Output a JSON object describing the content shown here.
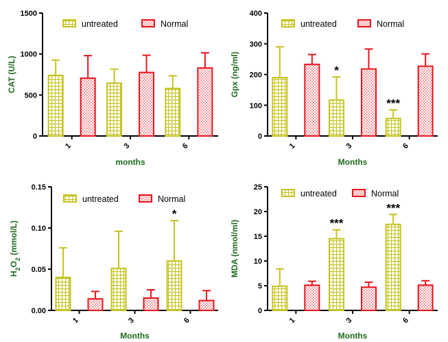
{
  "colors": {
    "untreated": "#c6c320",
    "normal": "#e8141c",
    "axis_title": "#1e6b1e"
  },
  "chart_data": [
    {
      "type": "bar",
      "categories": [
        "1",
        "3",
        "6"
      ],
      "xlabel": "months",
      "ylabel": "CAT (U/L)",
      "ylim": [
        0,
        1500
      ],
      "yticks": [
        "0",
        "500",
        "1000",
        "1500"
      ],
      "legend_position": "top",
      "series": [
        {
          "name": "untreated",
          "values": [
            740,
            645,
            580
          ],
          "errors": [
            185,
            170,
            155
          ]
        },
        {
          "name": "Normal",
          "values": [
            705,
            775,
            830
          ],
          "errors": [
            275,
            210,
            185
          ]
        }
      ],
      "annotations": []
    },
    {
      "type": "bar",
      "categories": [
        "1",
        "3",
        "6"
      ],
      "xlabel": "Months",
      "ylabel": "Gpx (ng/ml)",
      "ylim": [
        0,
        400
      ],
      "yticks": [
        "0",
        "100",
        "200",
        "300",
        "400"
      ],
      "legend_position": "top",
      "series": [
        {
          "name": "untreated",
          "values": [
            190,
            117,
            57
          ],
          "errors": [
            100,
            75,
            28
          ]
        },
        {
          "name": "Normal",
          "values": [
            233,
            218,
            227
          ],
          "errors": [
            32,
            65,
            40
          ]
        }
      ],
      "annotations": [
        {
          "category": "3",
          "series": "untreated",
          "text": "*"
        },
        {
          "category": "6",
          "series": "untreated",
          "text": "***"
        }
      ]
    },
    {
      "type": "bar",
      "categories": [
        "1",
        "3",
        "6"
      ],
      "xlabel": "Months",
      "ylabel": "H2O2 (mmol/L)",
      "ylim": [
        0,
        0.15
      ],
      "yticks": [
        "0.00",
        "0.05",
        "0.10",
        "0.15"
      ],
      "legend_position": "top",
      "series": [
        {
          "name": "untreated",
          "values": [
            0.04,
            0.051,
            0.06
          ],
          "errors": [
            0.036,
            0.045,
            0.049
          ]
        },
        {
          "name": "Normal",
          "values": [
            0.014,
            0.015,
            0.012
          ],
          "errors": [
            0.009,
            0.01,
            0.012
          ]
        }
      ],
      "annotations": [
        {
          "category": "6",
          "series": "untreated",
          "text": "*"
        }
      ]
    },
    {
      "type": "bar",
      "categories": [
        "1",
        "3",
        "6"
      ],
      "xlabel": "Months",
      "ylabel": "MDA (nmol/ml)",
      "ylim": [
        0,
        25
      ],
      "yticks": [
        "0",
        "5",
        "10",
        "15",
        "20",
        "25"
      ],
      "legend_position": "top",
      "series": [
        {
          "name": "untreated",
          "values": [
            4.9,
            14.5,
            17.4
          ],
          "errors": [
            3.5,
            1.8,
            2.0
          ]
        },
        {
          "name": "Normal",
          "values": [
            5.1,
            4.7,
            5.1
          ],
          "errors": [
            0.8,
            1.0,
            0.9
          ]
        }
      ],
      "annotations": [
        {
          "category": "3",
          "series": "untreated",
          "text": "***"
        },
        {
          "category": "6",
          "series": "untreated",
          "text": "***"
        }
      ]
    }
  ]
}
